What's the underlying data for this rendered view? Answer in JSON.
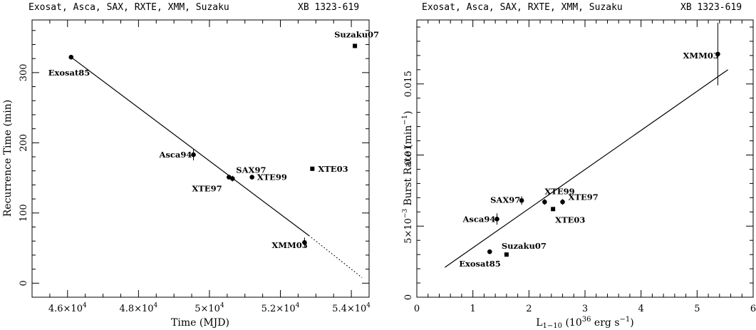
{
  "chart_data": [
    {
      "type": "scatter",
      "header_left": "Exosat, Asca, SAX, RXTE, XMM, Suzaku",
      "header_right": "XB 1323-619",
      "xlabel": "Time (MJD)",
      "ylabel": "Recurrence Time (min)",
      "xlim": [
        45000,
        54500
      ],
      "ylim": [
        -20,
        375
      ],
      "xticks": [
        {
          "v": 46000,
          "m": "4.6",
          "e": "4"
        },
        {
          "v": 48000,
          "m": "4.8",
          "e": "4"
        },
        {
          "v": 50000,
          "m": "5",
          "e": "4"
        },
        {
          "v": 52000,
          "m": "5.2",
          "e": "4"
        },
        {
          "v": 54000,
          "m": "5.4",
          "e": "4"
        }
      ],
      "yticks": [
        "0",
        "100",
        "200",
        "300"
      ],
      "yticks_v": [
        0,
        100,
        200,
        300
      ],
      "points": [
        {
          "label": "Exosat85",
          "x": 46100,
          "y": 322,
          "err": 3,
          "marker": "circle"
        },
        {
          "label": "Asca94",
          "x": 49550,
          "y": 183,
          "err": 8,
          "marker": "circle"
        },
        {
          "label": "XTE97",
          "x": 50550,
          "y": 151,
          "err": 3,
          "marker": "circle"
        },
        {
          "label": "SAX97",
          "x": 50650,
          "y": 149,
          "err": 4,
          "marker": "circle"
        },
        {
          "label": "XTE99",
          "x": 51200,
          "y": 151,
          "err": 2,
          "marker": "circle"
        },
        {
          "label": "XTE03",
          "x": 52900,
          "y": 163,
          "err": 3,
          "marker": "square"
        },
        {
          "label": "XMM03",
          "x": 52680,
          "y": 58,
          "err": 7,
          "marker": "circle"
        },
        {
          "label": "Suzaku07",
          "x": 54100,
          "y": 338,
          "err": 0,
          "marker": "square"
        }
      ],
      "fit_solid": [
        [
          46100,
          322
        ],
        [
          52800,
          68
        ]
      ],
      "fit_dotted": [
        [
          52800,
          68
        ],
        [
          54300,
          8
        ]
      ]
    },
    {
      "type": "scatter",
      "header_left": "Exosat, Asca, SAX, RXTE, XMM, Suzaku",
      "header_right": "XB 1323-619",
      "xlabel_main": "L",
      "xlabel_sub": "1−10",
      "xlabel_open": " (10",
      "xlabel_sup1": "36",
      "xlabel_mid": " erg s",
      "xlabel_sup2": "−1",
      "xlabel_close": ")",
      "ylabel_main": "Burst Rate (min",
      "ylabel_sup": "−1",
      "ylabel_close": ")",
      "xlim": [
        0,
        6
      ],
      "ylim": [
        0,
        0.0195
      ],
      "xticks": [
        "0",
        "1",
        "2",
        "3",
        "4",
        "5",
        "6"
      ],
      "xticks_v": [
        0,
        1,
        2,
        3,
        4,
        5,
        6
      ],
      "yticks": [
        {
          "v": 0,
          "text": "0"
        },
        {
          "v": 0.005,
          "text": "5×10",
          "sup": "−3"
        },
        {
          "v": 0.01,
          "text": "0.01"
        },
        {
          "v": 0.015,
          "text": "0.015"
        }
      ],
      "points": [
        {
          "label": "XMM03",
          "x": 5.37,
          "y": 0.0171,
          "err": 0.0022,
          "marker": "circle"
        },
        {
          "label": "SAX97",
          "x": 1.87,
          "y": 0.0068,
          "err": 0.0003,
          "marker": "circle"
        },
        {
          "label": "XTE99",
          "x": 2.28,
          "y": 0.0067,
          "err": 0.0002,
          "marker": "circle"
        },
        {
          "label": "XTE97",
          "x": 2.6,
          "y": 0.0067,
          "err": 0.0002,
          "marker": "circle"
        },
        {
          "label": "XTE03",
          "x": 2.43,
          "y": 0.0062,
          "err": 0,
          "marker": "square"
        },
        {
          "label": "Asca94",
          "x": 1.43,
          "y": 0.0055,
          "err": 0.0004,
          "marker": "circle"
        },
        {
          "label": "Suzaku07",
          "x": 1.6,
          "y": 0.003,
          "err": 0,
          "marker": "square"
        },
        {
          "label": "Exosat85",
          "x": 1.3,
          "y": 0.0032,
          "err": 0,
          "marker": "circle"
        }
      ],
      "fit_solid": [
        [
          0.5,
          0.0021
        ],
        [
          5.55,
          0.016
        ]
      ]
    }
  ]
}
